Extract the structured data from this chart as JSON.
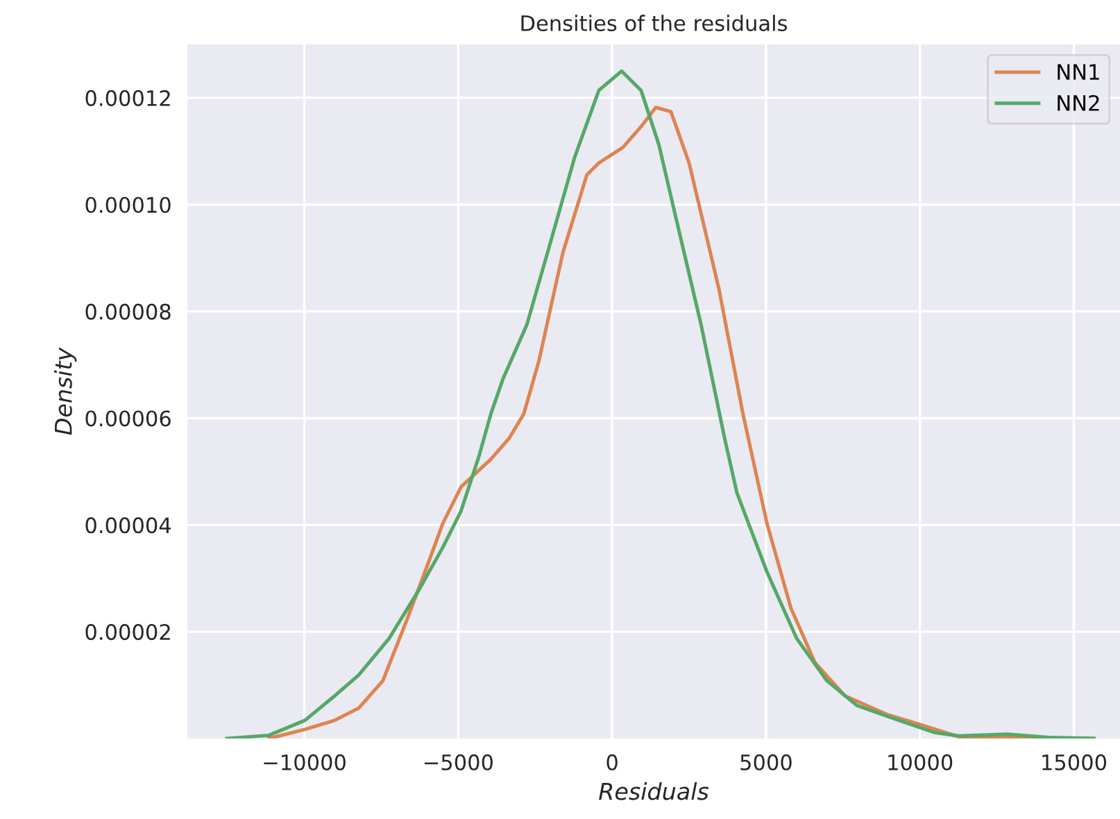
{
  "chart_data": {
    "type": "line",
    "title": "Densities of the residuals",
    "xlabel": "Residuals",
    "ylabel": "Density",
    "xlim": [
      -13800,
      16500
    ],
    "ylim": [
      0,
      0.00013
    ],
    "xticks": [
      {
        "value": -10000,
        "label": "−10000"
      },
      {
        "value": -5000,
        "label": "−5000"
      },
      0,
      5000,
      10000,
      15000
    ],
    "yticks": [
      {
        "value": 2e-05,
        "label": "0.00002"
      },
      {
        "value": 4e-05,
        "label": "0.00004"
      },
      {
        "value": 6e-05,
        "label": "0.00006"
      },
      {
        "value": 8e-05,
        "label": "0.00008"
      },
      {
        "value": 0.0001,
        "label": "0.00010"
      },
      {
        "value": 0.00012,
        "label": "0.00012"
      }
    ],
    "grid": true,
    "legend": "top right",
    "marker": "none",
    "line_style": "solid",
    "series": [
      {
        "name": "NN1",
        "color": "#dd8452",
        "x": [
          -11150,
          -9980,
          -9010,
          -8230,
          -7450,
          -6670,
          -6080,
          -5500,
          -4910,
          -3940,
          -3350,
          -2870,
          -2380,
          -1600,
          -820,
          -430,
          350,
          940,
          1420,
          1910,
          2500,
          3470,
          4250,
          5030,
          5810,
          6590,
          7560,
          8930,
          9900,
          11270,
          13220,
          15650
        ],
        "values": [
          0,
          1.7e-06,
          3.4e-06,
          5.7e-06,
          1.08e-05,
          2.22e-05,
          3.12e-05,
          4.03e-05,
          4.71e-05,
          5.23e-05,
          5.62e-05,
          6.08e-05,
          7.07e-05,
          9.1e-05,
          0.0001056,
          0.0001078,
          0.0001107,
          0.0001146,
          0.0001182,
          0.0001174,
          0.0001078,
          8.42e-05,
          6.08e-05,
          4.03e-05,
          2.44e-05,
          1.42e-05,
          8e-06,
          4.5e-06,
          2.8e-06,
          3e-07,
          2e-07,
          0
        ]
      },
      {
        "name": "NN2",
        "color": "#55a868",
        "x": [
          -12515,
          -11150,
          -9980,
          -9010,
          -8230,
          -7250,
          -6280,
          -5500,
          -4910,
          -4330,
          -3940,
          -3550,
          -2770,
          -1990,
          -1210,
          -430,
          310,
          940,
          1520,
          2110,
          2890,
          3660,
          4055,
          5030,
          6000,
          6980,
          7950,
          9320,
          10490,
          11270,
          12830,
          14190,
          15650
        ],
        "values": [
          0,
          6e-07,
          3.4e-06,
          8e-06,
          1.19e-05,
          1.87e-05,
          2.78e-05,
          3.58e-05,
          4.26e-05,
          5.28e-05,
          6.08e-05,
          6.73e-05,
          7.75e-05,
          9.32e-05,
          0.000109,
          0.0001214,
          0.000125,
          0.0001214,
          0.0001112,
          9.66e-05,
          7.75e-05,
          5.61e-05,
          4.6e-05,
          3.12e-05,
          1.87e-05,
          1.08e-05,
          6.2e-06,
          3.4e-06,
          1.1e-06,
          5e-07,
          8e-07,
          2e-07,
          0
        ]
      }
    ]
  }
}
